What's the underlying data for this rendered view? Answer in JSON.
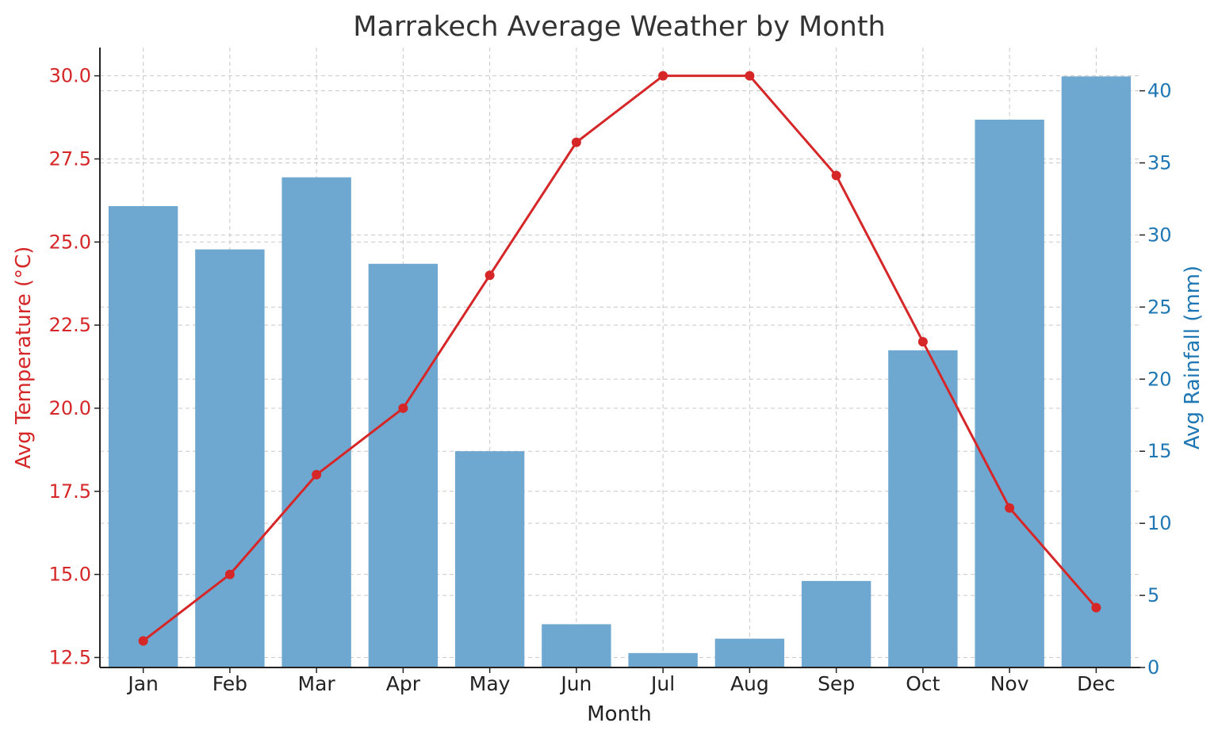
{
  "chart_data": {
    "type": "bar",
    "title": "Marrakech Average Weather by Month",
    "xlabel": "Month",
    "categories": [
      "Jan",
      "Feb",
      "Mar",
      "Apr",
      "May",
      "Jun",
      "Jul",
      "Aug",
      "Sep",
      "Oct",
      "Nov",
      "Dec"
    ],
    "series": [
      {
        "type": "bar",
        "axis": "right",
        "values": [
          32,
          29,
          34,
          28,
          15,
          3,
          1,
          2,
          6,
          22,
          38,
          41
        ],
        "color": "#6ea7d0"
      },
      {
        "type": "line",
        "axis": "left",
        "values": [
          13,
          15,
          18,
          20,
          24,
          28,
          30,
          30,
          27,
          22,
          17,
          14
        ],
        "color": "#d62728",
        "markers": true
      }
    ],
    "y_left": {
      "label": "Avg Temperature (°C)",
      "ticks": [
        "12.5",
        "15.0",
        "17.5",
        "20.0",
        "22.5",
        "25.0",
        "27.5",
        "30.0"
      ],
      "tick_values": [
        12.5,
        15,
        17.5,
        20,
        22.5,
        25,
        27.5,
        30
      ],
      "range": [
        12.2,
        30.85
      ],
      "color": "#d62728"
    },
    "y_right": {
      "label": "Avg Rainfall (mm)",
      "ticks": [
        "0",
        "5",
        "10",
        "15",
        "20",
        "25",
        "30",
        "35",
        "40"
      ],
      "tick_values": [
        0,
        5,
        10,
        15,
        20,
        25,
        30,
        35,
        40
      ],
      "range": [
        0,
        43
      ],
      "color": "#1f77b4"
    },
    "grid": true,
    "legend": "none"
  }
}
